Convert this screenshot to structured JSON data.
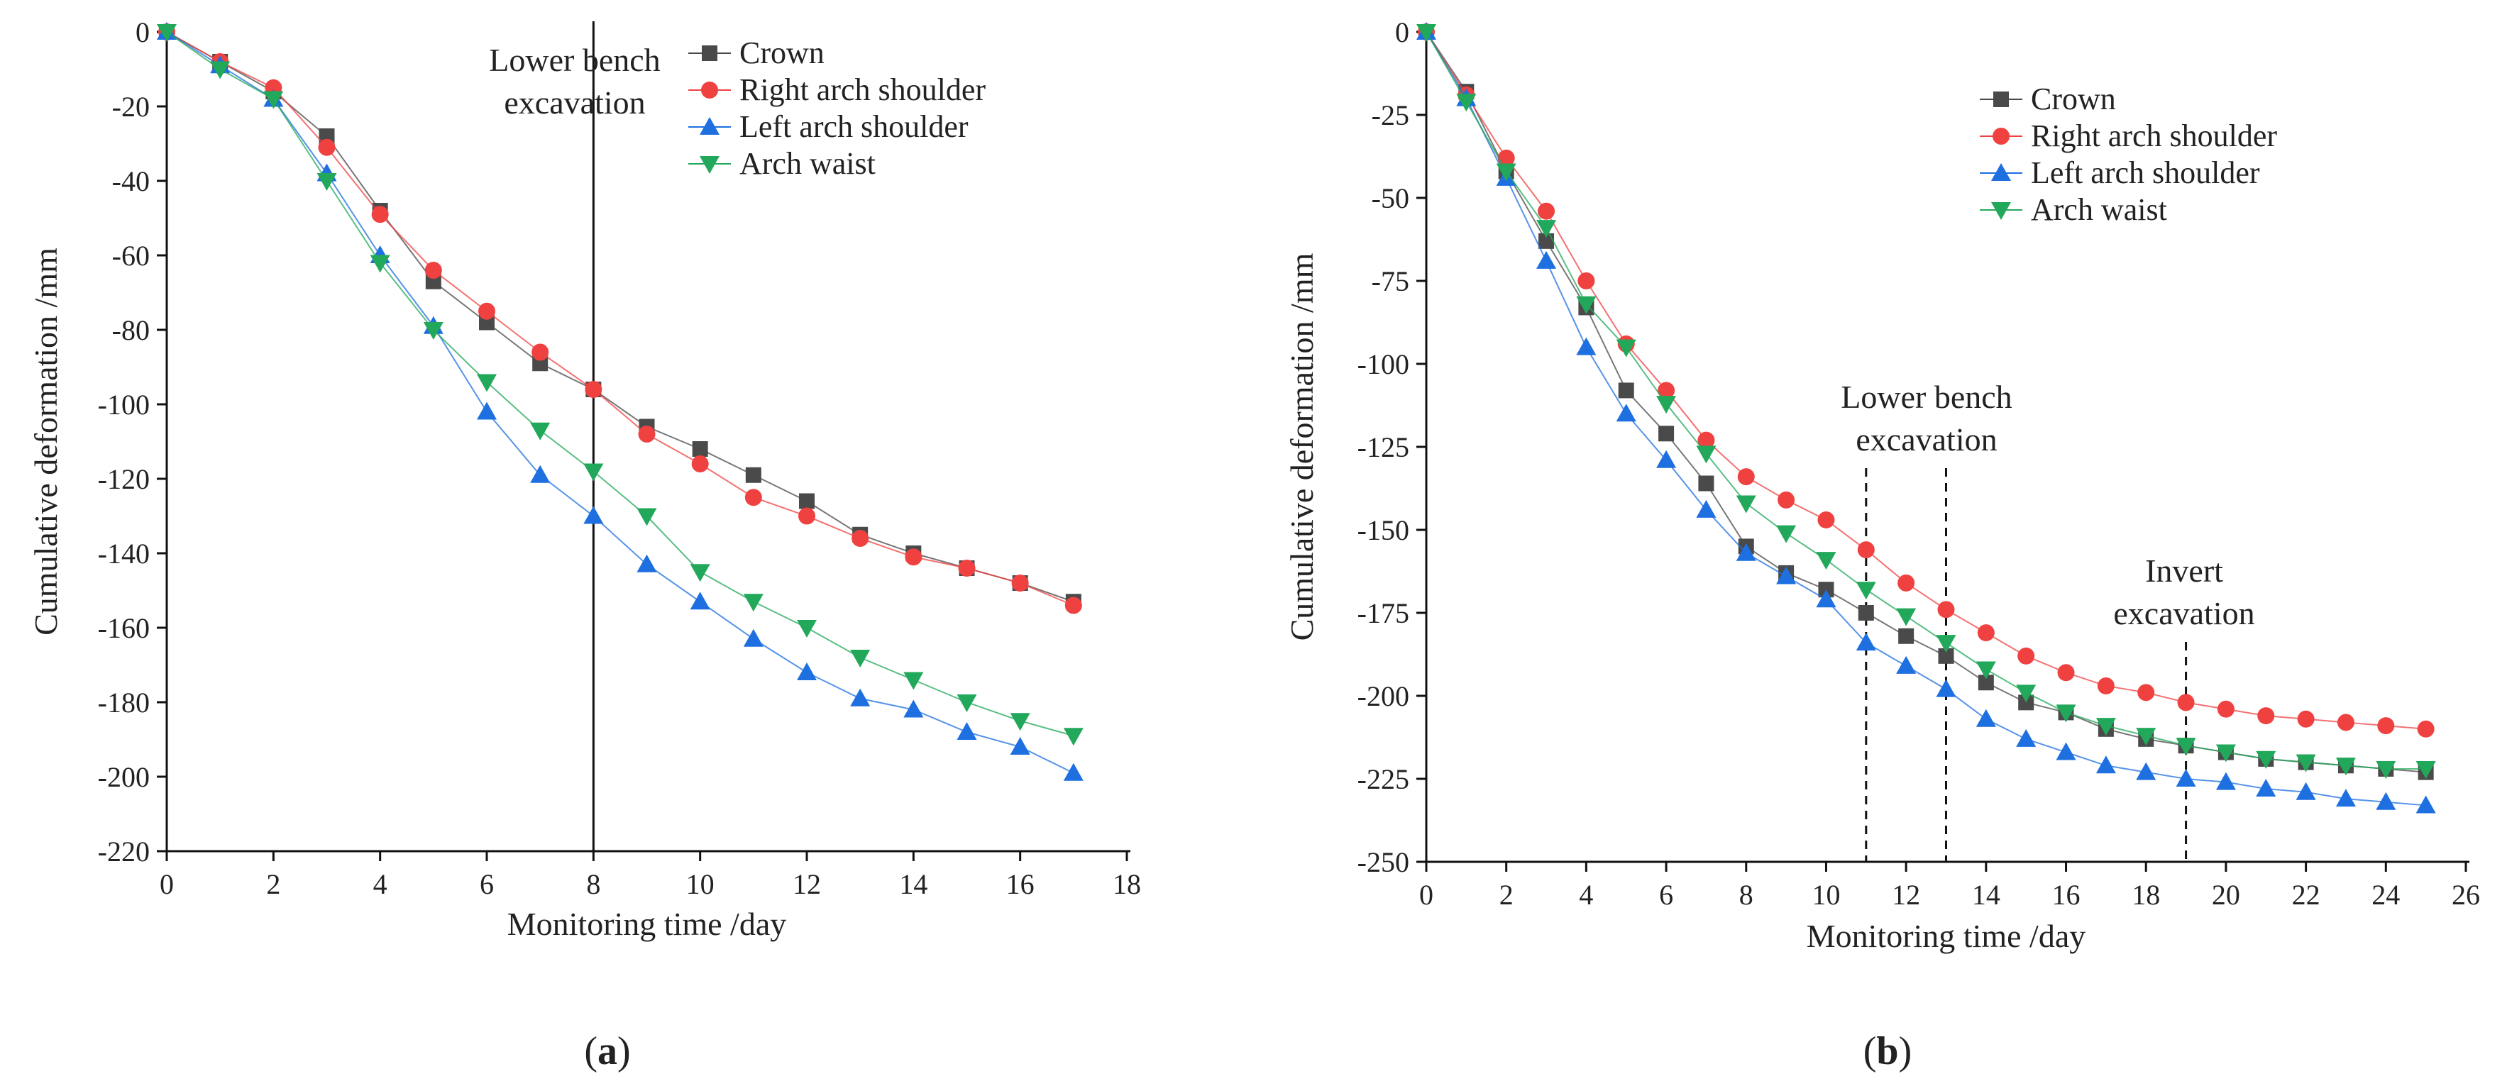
{
  "colors": {
    "crown": "#4a4a4a",
    "right_arch_shoulder": "#f04141",
    "left_arch_shoulder": "#1e6fe0",
    "arch_waist": "#22a85a",
    "axis": "#111111"
  },
  "chart_data": [
    {
      "type": "line",
      "panel_label": "a",
      "xlabel": "Monitoring time /day",
      "ylabel": "Cumulative deformation /mm",
      "xlim": [
        0,
        18
      ],
      "ylim": [
        -220,
        0
      ],
      "xticks": [
        0,
        2,
        4,
        6,
        8,
        10,
        12,
        14,
        16,
        18
      ],
      "yticks": [
        0,
        -20,
        -40,
        -60,
        -80,
        -100,
        -120,
        -140,
        -160,
        -180,
        -200,
        -220
      ],
      "legend_position": "top-right",
      "x": [
        0,
        1,
        2,
        3,
        4,
        5,
        6,
        7,
        8,
        9,
        10,
        11,
        12,
        13,
        14,
        15,
        16,
        17
      ],
      "series": [
        {
          "name": "Crown",
          "key": "crown",
          "marker": "square",
          "values": [
            0,
            -8,
            -16,
            -28,
            -48,
            -67,
            -78,
            -89,
            -96,
            -106,
            -112,
            -119,
            -126,
            -135,
            -140,
            -144,
            -148,
            -153
          ]
        },
        {
          "name": "Right arch shoulder",
          "key": "right_arch_shoulder",
          "marker": "circle",
          "values": [
            0,
            -8,
            -15,
            -31,
            -49,
            -64,
            -75,
            -86,
            -96,
            -108,
            -116,
            -125,
            -130,
            -136,
            -141,
            -144,
            -148,
            -154
          ]
        },
        {
          "name": "Left arch shoulder",
          "key": "left_arch_shoulder",
          "marker": "triangle-up",
          "values": [
            0,
            -9,
            -18,
            -38,
            -60,
            -79,
            -102,
            -119,
            -130,
            -143,
            -153,
            -163,
            -172,
            -179,
            -182,
            -188,
            -192,
            -199
          ]
        },
        {
          "name": "Arch waist",
          "key": "arch_waist",
          "marker": "triangle-down",
          "values": [
            0,
            -10,
            -18,
            -40,
            -62,
            -80,
            -94,
            -107,
            -118,
            -130,
            -145,
            -153,
            -160,
            -168,
            -174,
            -180,
            -185,
            -189
          ]
        }
      ],
      "annotations": [
        {
          "text_lines": [
            "Lower bench",
            "excavation"
          ],
          "x": 8,
          "line_style": "solid"
        }
      ]
    },
    {
      "type": "line",
      "panel_label": "b",
      "xlabel": "Monitoring time /day",
      "ylabel": "Cumulative deformation /mm",
      "xlim": [
        0,
        26
      ],
      "ylim": [
        -250,
        0
      ],
      "xticks": [
        0,
        2,
        4,
        6,
        8,
        10,
        12,
        14,
        16,
        18,
        20,
        22,
        24,
        26
      ],
      "yticks": [
        0,
        -25,
        -50,
        -75,
        -100,
        -125,
        -150,
        -175,
        -200,
        -225,
        -250
      ],
      "legend_position": "top-right",
      "x": [
        0,
        1,
        2,
        3,
        4,
        5,
        6,
        7,
        8,
        9,
        10,
        11,
        12,
        13,
        14,
        15,
        16,
        17,
        18,
        19,
        20,
        21,
        22,
        23,
        24,
        25
      ],
      "series": [
        {
          "name": "Crown",
          "key": "crown",
          "marker": "square",
          "values": [
            0,
            -18,
            -42,
            -63,
            -83,
            -108,
            -121,
            -136,
            -155,
            -163,
            -168,
            -175,
            -182,
            -188,
            -196,
            -202,
            -205,
            -210,
            -213,
            -215,
            -217,
            -219,
            -220,
            -221,
            -222,
            -223
          ]
        },
        {
          "name": "Right arch shoulder",
          "key": "right_arch_shoulder",
          "marker": "circle",
          "values": [
            0,
            -19,
            -38,
            -54,
            -75,
            -94,
            -108,
            -123,
            -134,
            -141,
            -147,
            -156,
            -166,
            -174,
            -181,
            -188,
            -193,
            -197,
            -199,
            -202,
            -204,
            -206,
            -207,
            -208,
            -209,
            -210
          ]
        },
        {
          "name": "Left arch shoulder",
          "key": "left_arch_shoulder",
          "marker": "triangle-up",
          "values": [
            0,
            -20,
            -44,
            -69,
            -95,
            -115,
            -129,
            -144,
            -157,
            -164,
            -171,
            -184,
            -191,
            -198,
            -207,
            -213,
            -217,
            -221,
            -223,
            -225,
            -226,
            -228,
            -229,
            -231,
            -232,
            -233
          ]
        },
        {
          "name": "Arch waist",
          "key": "arch_waist",
          "marker": "triangle-down",
          "values": [
            0,
            -21,
            -42,
            -59,
            -82,
            -95,
            -112,
            -127,
            -142,
            -151,
            -159,
            -168,
            -176,
            -184,
            -192,
            -199,
            -205,
            -209,
            -212,
            -215,
            -217,
            -219,
            -220,
            -221,
            -222,
            -222
          ]
        }
      ],
      "annotations": [
        {
          "text_lines": [
            "Lower bench",
            "excavation"
          ],
          "x_lines": [
            11,
            13
          ],
          "line_style": "dashed"
        },
        {
          "text_lines": [
            "Invert",
            "excavation"
          ],
          "x_lines": [
            19
          ],
          "line_style": "dashed"
        }
      ]
    }
  ]
}
